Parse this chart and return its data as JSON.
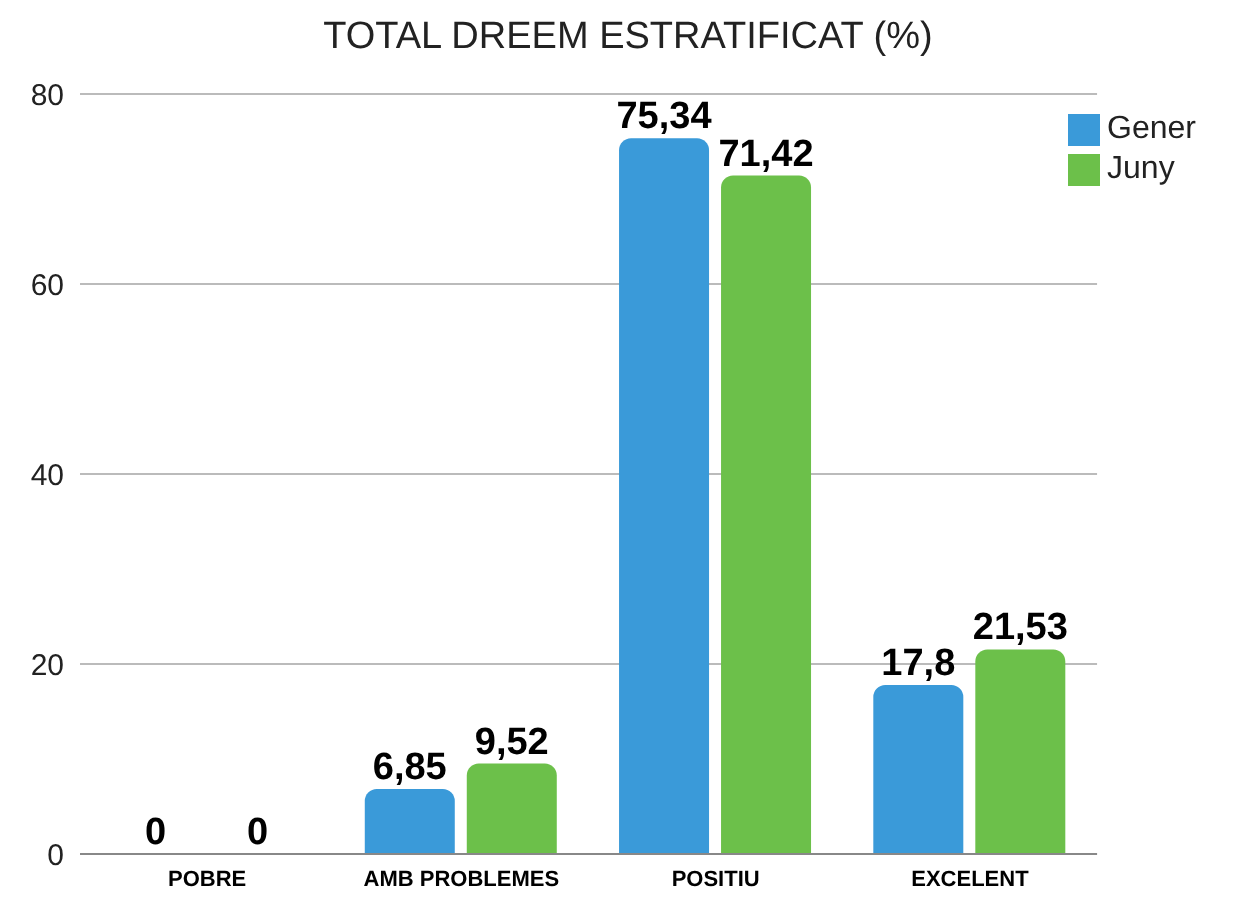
{
  "chart_data": {
    "type": "bar",
    "title": "TOTAL DREEM ESTRATIFICAT (%)",
    "categories": [
      "POBRE",
      "AMB PROBLEMES",
      "POSITIU",
      "EXCELENT"
    ],
    "series": [
      {
        "name": "Gener",
        "color": "#3a9ad9",
        "values": [
          0,
          6.85,
          75.34,
          17.8
        ],
        "value_labels": [
          "0",
          "6,85",
          "75,34",
          "17,8"
        ]
      },
      {
        "name": "Juny",
        "color": "#6cc04a",
        "values": [
          0,
          9.52,
          71.42,
          21.53
        ],
        "value_labels": [
          "0",
          "9,52",
          "71,42",
          "21,53"
        ]
      }
    ],
    "ylim": [
      0,
      80
    ],
    "yticks": [
      0,
      20,
      40,
      60,
      80
    ],
    "grid": "y",
    "legend": "top right"
  }
}
